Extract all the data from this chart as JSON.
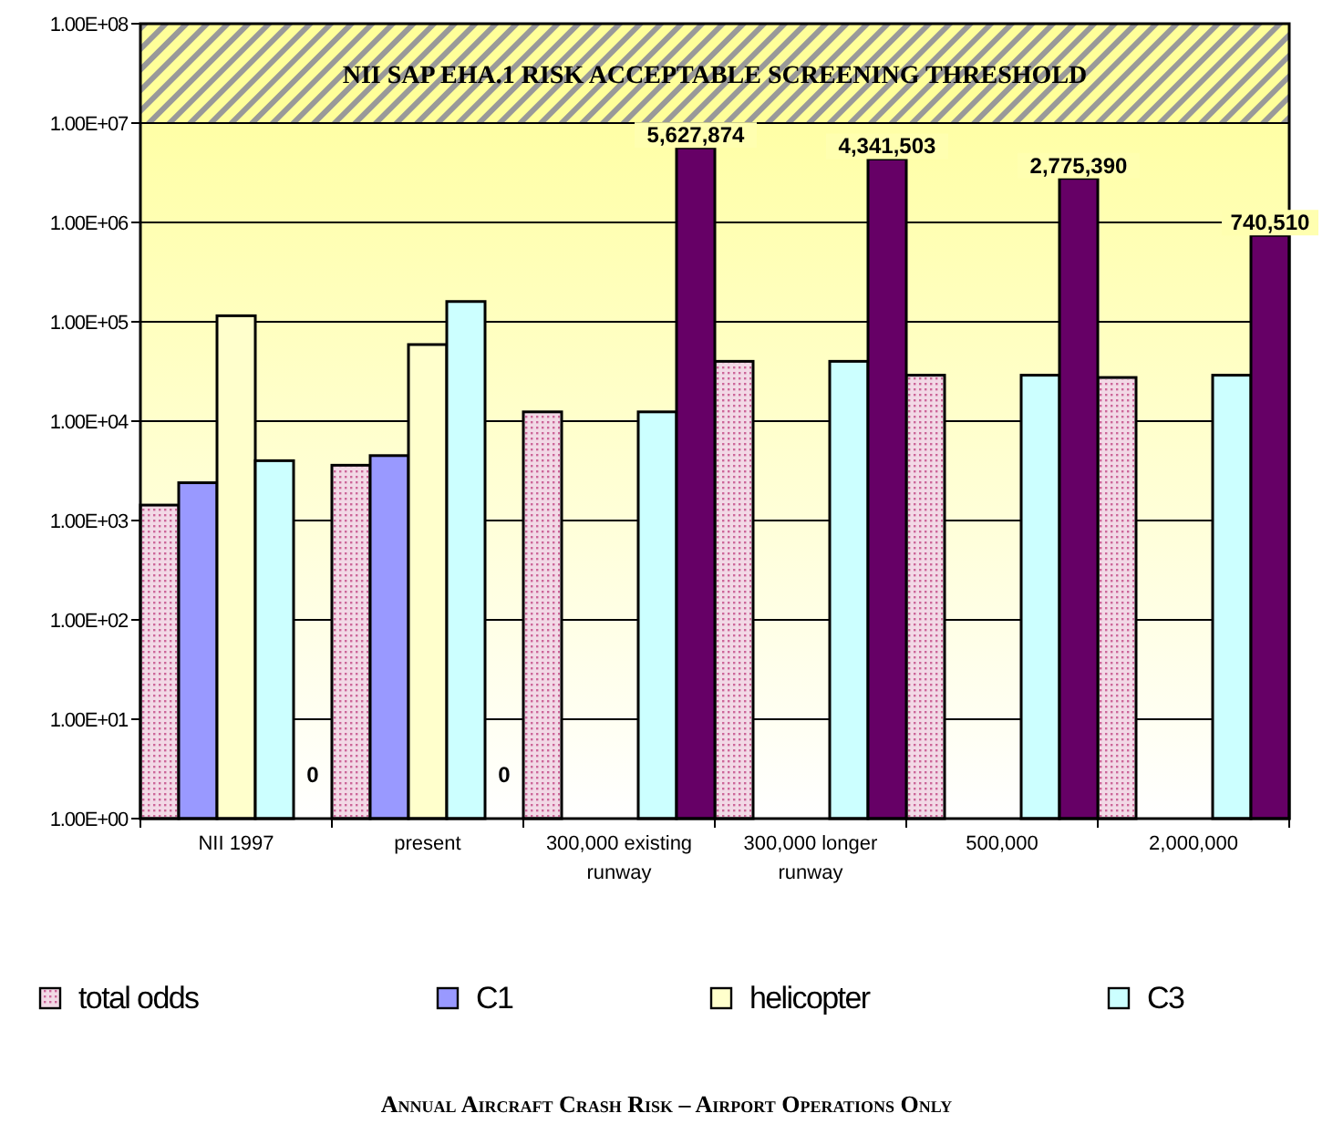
{
  "chart_data": {
    "type": "bar",
    "title": "Annual Aircraft Crash Risk – Airport Operations Only",
    "categories": [
      "NII 1997",
      "present",
      "300,000 existing runway",
      "300,000 longer runway",
      "500,000",
      "2,000,000"
    ],
    "series": [
      {
        "name": "total odds",
        "color": "#f2d9e6",
        "values": [
          1430,
          3600,
          12400,
          40000,
          29000,
          27500
        ]
      },
      {
        "name": "C1",
        "color": "#9999ff",
        "values": [
          2400,
          4500,
          null,
          null,
          null,
          null
        ]
      },
      {
        "name": "helicopter",
        "color": "#ffffcc",
        "values": [
          115000,
          59000,
          null,
          null,
          null,
          null
        ]
      },
      {
        "name": "C3",
        "color": "#ccffff",
        "values": [
          4000,
          160000,
          12400,
          40000,
          29000,
          29000
        ]
      },
      {
        "color": "#660066",
        "values": [
          null,
          null,
          5627874,
          4341503,
          2775390,
          740510
        ],
        "value_labels": [
          null,
          null,
          "5,627,874",
          "4,341,503",
          "2,775,390",
          "740,510"
        ]
      }
    ],
    "log": "y",
    "ylim": [
      1,
      100000000
    ],
    "yticks": [
      {
        "value": 1,
        "label": "1.00E+00"
      },
      {
        "value": 10,
        "label": "1.00E+01"
      },
      {
        "value": 100,
        "label": "1.00E+02"
      },
      {
        "value": 1000,
        "label": "1.00E+03"
      },
      {
        "value": 10000,
        "label": "1.00E+04"
      },
      {
        "value": 100000,
        "label": "1.00E+05"
      },
      {
        "value": 1000000,
        "label": "1.00E+06"
      },
      {
        "value": 10000000,
        "label": "1.00E+07"
      },
      {
        "value": 100000000,
        "label": "1.00E+08"
      }
    ],
    "grid": "y",
    "bands": [
      {
        "axis": "y",
        "from": 10000000,
        "to": 100000000,
        "label": "NII SAP EHA.1 RISK ACCEPTABLE SCREENING THRESHOLD",
        "color": "#ffff99"
      }
    ],
    "annotations": [
      "0",
      "0"
    ],
    "legend": "bottom"
  }
}
